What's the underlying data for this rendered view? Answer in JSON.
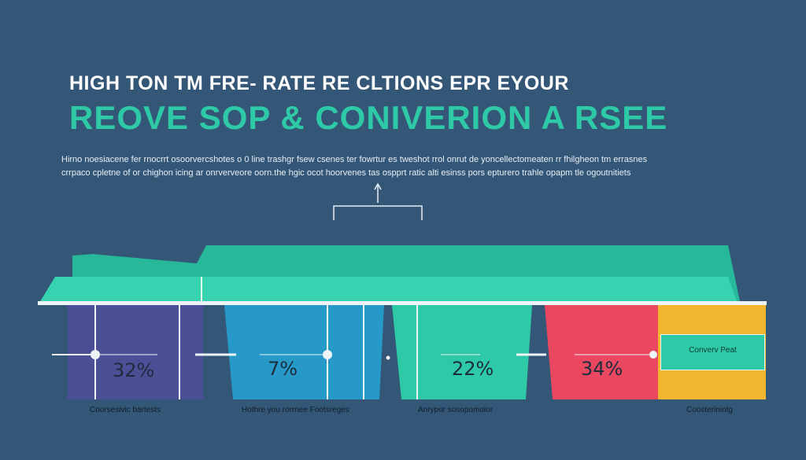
{
  "title": {
    "line1": "HIGH TON TM FRE- RATE  RE CLTIONS EPR EYOUR",
    "line2": "REOVE  SOP & CONIVERION A RSEE"
  },
  "description": {
    "line1": "Hirno noesiacene fer rnocrrt osoorvercshotes o 0 line trashgr fsew csenes ter fowrtur es tweshot rrol onrut de yoncellectomeaten rr fhilgheon tm errasnes",
    "line2": "crrpaco cpletne of or chighon icing ar onrverveore oorn.the hgic ocot hoorvenes tas ospprt ratic alti esinss pors epturero trahle opapm tle ogoutnitiets"
  },
  "bars": [
    {
      "label": "32%",
      "caption": "Coorsesivic bartests",
      "color": "#4a4f96"
    },
    {
      "label": "7%",
      "caption": "Hothre you rorrnee Footsreges",
      "color": "#2699c8"
    },
    {
      "label": "22%",
      "caption": "Anrypor sosopomolor",
      "color": "#2ec9a6"
    },
    {
      "label": "34%",
      "caption": "",
      "color": "#ea4761"
    }
  ],
  "legend": {
    "label": "Converv Peat",
    "caption": "Coosterinintg",
    "color": "#f2b72f"
  }
}
